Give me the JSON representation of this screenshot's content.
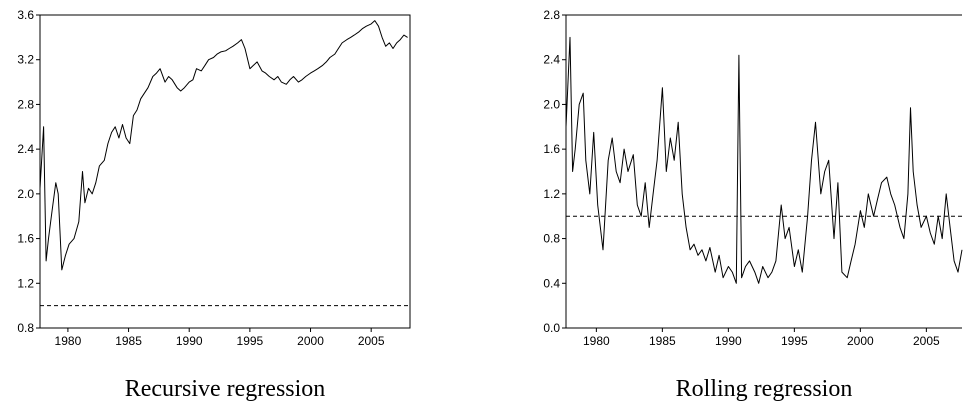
{
  "chart_data": [
    {
      "type": "line",
      "caption": "Recursive regression",
      "xlim": [
        1977.7,
        2008.2
      ],
      "ylim": [
        0.8,
        3.6
      ],
      "x_ticks": [
        1980,
        1985,
        1990,
        1995,
        2000,
        2005
      ],
      "y_ticks": [
        0.8,
        1.2,
        1.6,
        2.0,
        2.4,
        2.8,
        3.2,
        3.6
      ],
      "y_tick_labels": [
        "0.8",
        "1.2",
        "1.6",
        "2.0",
        "2.4",
        "2.8",
        "3.2",
        "3.6"
      ],
      "reference_line": 1.0,
      "frame": "full-box",
      "series": [
        {
          "x": [
            1977.7,
            1978.0,
            1978.2,
            1978.4,
            1978.7,
            1979.0,
            1979.2,
            1979.5,
            1979.8,
            1980.1,
            1980.5,
            1980.9,
            1981.2,
            1981.4,
            1981.7,
            1982.0,
            1982.3,
            1982.6,
            1983.0,
            1983.3,
            1983.6,
            1983.9,
            1984.2,
            1984.5,
            1984.8,
            1985.1,
            1985.4,
            1985.7,
            1986.0,
            1986.3,
            1986.6,
            1987.0,
            1987.3,
            1987.6,
            1988.0,
            1988.3,
            1988.6,
            1989.0,
            1989.3,
            1989.6,
            1990.0,
            1990.3,
            1990.6,
            1991.0,
            1991.3,
            1991.6,
            1992.0,
            1992.3,
            1992.6,
            1993.0,
            1993.3,
            1993.6,
            1994.0,
            1994.3,
            1994.6,
            1995.0,
            1995.3,
            1995.6,
            1996.0,
            1996.3,
            1996.6,
            1997.0,
            1997.3,
            1997.6,
            1998.0,
            1998.3,
            1998.6,
            1999.0,
            1999.3,
            1999.6,
            2000.0,
            2000.3,
            2000.6,
            2001.0,
            2001.3,
            2001.6,
            2002.0,
            2002.3,
            2002.6,
            2003.0,
            2003.3,
            2003.6,
            2004.0,
            2004.3,
            2004.6,
            2005.0,
            2005.3,
            2005.6,
            2005.9,
            2006.2,
            2006.5,
            2006.8,
            2007.1,
            2007.4,
            2007.7,
            2008.0
          ],
          "y": [
            2.05,
            2.6,
            1.4,
            1.6,
            1.85,
            2.1,
            2.0,
            1.32,
            1.45,
            1.55,
            1.6,
            1.75,
            2.2,
            1.92,
            2.05,
            2.0,
            2.1,
            2.25,
            2.3,
            2.45,
            2.55,
            2.6,
            2.5,
            2.62,
            2.5,
            2.45,
            2.7,
            2.75,
            2.85,
            2.9,
            2.95,
            3.05,
            3.08,
            3.12,
            3.0,
            3.05,
            3.02,
            2.95,
            2.92,
            2.95,
            3.0,
            3.02,
            3.12,
            3.1,
            3.15,
            3.2,
            3.22,
            3.25,
            3.27,
            3.28,
            3.3,
            3.32,
            3.35,
            3.38,
            3.3,
            3.12,
            3.15,
            3.18,
            3.1,
            3.08,
            3.05,
            3.02,
            3.05,
            3.0,
            2.98,
            3.02,
            3.05,
            3.0,
            3.02,
            3.05,
            3.08,
            3.1,
            3.12,
            3.15,
            3.18,
            3.22,
            3.25,
            3.3,
            3.35,
            3.38,
            3.4,
            3.42,
            3.45,
            3.48,
            3.5,
            3.52,
            3.55,
            3.5,
            3.4,
            3.32,
            3.35,
            3.3,
            3.35,
            3.38,
            3.42,
            3.4
          ]
        }
      ]
    },
    {
      "type": "line",
      "caption": "Rolling regression",
      "xlim": [
        1977.7,
        2007.7
      ],
      "ylim": [
        0.0,
        2.8
      ],
      "x_ticks": [
        1980,
        1985,
        1990,
        1995,
        2000,
        2005
      ],
      "y_ticks": [
        0.0,
        0.4,
        0.8,
        1.2,
        1.6,
        2.0,
        2.4,
        2.8
      ],
      "y_tick_labels": [
        "0.0",
        "0.4",
        "0.8",
        "1.2",
        "1.6",
        "2.0",
        "2.4",
        "2.8"
      ],
      "reference_line": 1.0,
      "frame": "left-bottom-top",
      "series": [
        {
          "x": [
            1977.7,
            1978.0,
            1978.2,
            1978.4,
            1978.7,
            1979.0,
            1979.2,
            1979.5,
            1979.8,
            1980.1,
            1980.5,
            1980.9,
            1981.2,
            1981.5,
            1981.8,
            1982.1,
            1982.4,
            1982.8,
            1983.1,
            1983.4,
            1983.7,
            1984.0,
            1984.3,
            1984.6,
            1985.0,
            1985.3,
            1985.6,
            1985.9,
            1986.2,
            1986.5,
            1986.8,
            1987.1,
            1987.4,
            1987.7,
            1988.0,
            1988.3,
            1988.6,
            1989.0,
            1989.3,
            1989.6,
            1990.0,
            1990.3,
            1990.6,
            1990.8,
            1991.0,
            1991.3,
            1991.6,
            1992.0,
            1992.3,
            1992.6,
            1993.0,
            1993.3,
            1993.6,
            1994.0,
            1994.3,
            1994.6,
            1995.0,
            1995.3,
            1995.6,
            1996.0,
            1996.3,
            1996.6,
            1997.0,
            1997.3,
            1997.6,
            1998.0,
            1998.3,
            1998.6,
            1999.0,
            1999.3,
            1999.6,
            2000.0,
            2000.3,
            2000.6,
            2001.0,
            2001.3,
            2001.6,
            2002.0,
            2002.3,
            2002.6,
            2003.0,
            2003.3,
            2003.6,
            2003.8,
            2004.0,
            2004.3,
            2004.6,
            2005.0,
            2005.3,
            2005.6,
            2005.9,
            2006.2,
            2006.5,
            2006.8,
            2007.1,
            2007.4,
            2007.7
          ],
          "y": [
            1.8,
            2.6,
            1.4,
            1.6,
            2.0,
            2.1,
            1.5,
            1.2,
            1.75,
            1.1,
            0.7,
            1.5,
            1.7,
            1.4,
            1.3,
            1.6,
            1.4,
            1.55,
            1.1,
            1.0,
            1.3,
            0.9,
            1.2,
            1.5,
            2.15,
            1.4,
            1.7,
            1.5,
            1.84,
            1.2,
            0.9,
            0.7,
            0.75,
            0.65,
            0.7,
            0.6,
            0.72,
            0.5,
            0.65,
            0.45,
            0.55,
            0.5,
            0.4,
            2.44,
            0.45,
            0.55,
            0.6,
            0.5,
            0.4,
            0.55,
            0.45,
            0.5,
            0.6,
            1.1,
            0.8,
            0.9,
            0.55,
            0.7,
            0.5,
            1.0,
            1.5,
            1.84,
            1.2,
            1.4,
            1.5,
            0.8,
            1.3,
            0.5,
            0.45,
            0.6,
            0.75,
            1.05,
            0.9,
            1.2,
            1.0,
            1.15,
            1.3,
            1.35,
            1.2,
            1.1,
            0.9,
            0.8,
            1.2,
            1.97,
            1.4,
            1.1,
            0.9,
            1.0,
            0.85,
            0.75,
            1.0,
            0.8,
            1.2,
            0.9,
            0.6,
            0.5,
            0.7
          ]
        }
      ]
    }
  ]
}
